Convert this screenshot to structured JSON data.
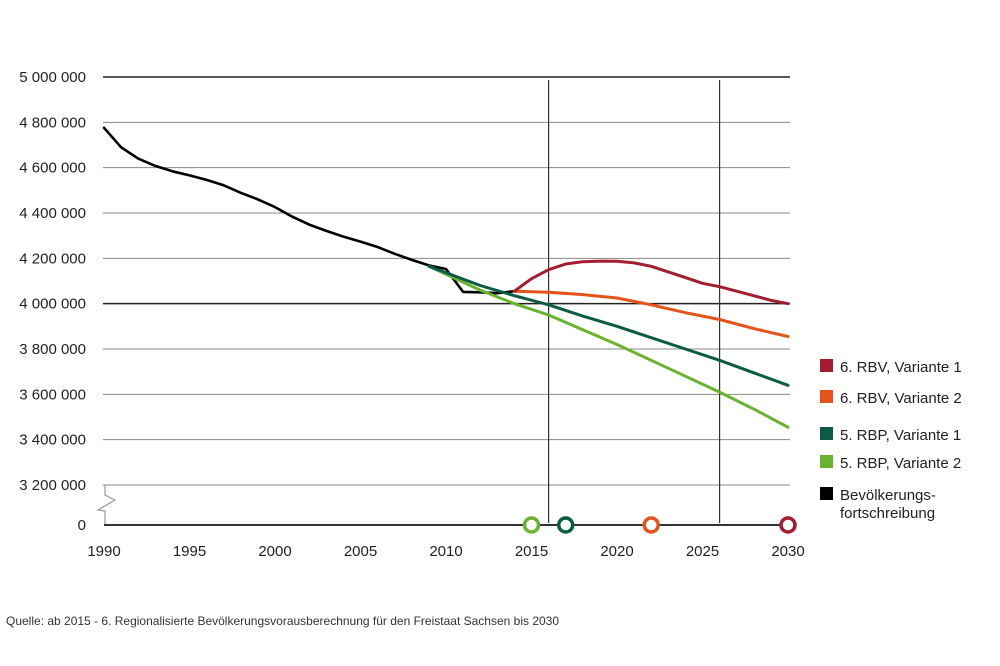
{
  "chart_data": {
    "type": "line",
    "title": "",
    "xlabel": "",
    "ylabel": "",
    "xlim": [
      1990,
      2030
    ],
    "ylim": [
      3200000,
      5000000
    ],
    "y_axis_break": {
      "from": 0,
      "to": 3200000
    },
    "x_ticks": [
      "1990",
      "1995",
      "2000",
      "2005",
      "2010",
      "2015",
      "2020",
      "2025",
      "2030"
    ],
    "y_ticks": [
      {
        "value": 5000000,
        "label": "5 000 000"
      },
      {
        "value": 4800000,
        "label": "4 800 000"
      },
      {
        "value": 4600000,
        "label": "4 600 000"
      },
      {
        "value": 4400000,
        "label": "4 400 000"
      },
      {
        "value": 4200000,
        "label": "4 200 000"
      },
      {
        "value": 4000000,
        "label": "4 000 000"
      },
      {
        "value": 3800000,
        "label": "3 800 000"
      },
      {
        "value": 3600000,
        "label": "3 600 000"
      },
      {
        "value": 3400000,
        "label": "3 400 000"
      },
      {
        "value": 3200000,
        "label": "3 200 000"
      },
      {
        "value": 0,
        "label": "0"
      }
    ],
    "grid": true,
    "reference_lines_x": [
      2016,
      2026
    ],
    "legend_position": "right",
    "series": [
      {
        "name": "6. RBV, Variante 1",
        "color": "#a51c30",
        "x": [
          2014,
          2015,
          2016,
          2017,
          2018,
          2019,
          2020,
          2021,
          2022,
          2023,
          2024,
          2025,
          2026,
          2027,
          2028,
          2029,
          2030
        ],
        "y": [
          4055000,
          4110000,
          4150000,
          4175000,
          4185000,
          4188000,
          4187000,
          4180000,
          4165000,
          4140000,
          4115000,
          4090000,
          4075000,
          4055000,
          4035000,
          4015000,
          4000000
        ],
        "marker_year": 2030
      },
      {
        "name": "6. RBV, Variante 2",
        "color": "#e5531a",
        "x": [
          2014,
          2016,
          2018,
          2020,
          2022,
          2024,
          2026,
          2028,
          2030
        ],
        "y": [
          4055000,
          4050000,
          4040000,
          4025000,
          3995000,
          3960000,
          3930000,
          3890000,
          3855000
        ],
        "marker_year": 2022
      },
      {
        "name": "5. RBP, Variante 1",
        "color": "#0b5c45",
        "x": [
          2009,
          2012,
          2014,
          2016,
          2018,
          2020,
          2022,
          2024,
          2026,
          2028,
          2030
        ],
        "y": [
          4165000,
          4080000,
          4035000,
          3995000,
          3945000,
          3900000,
          3850000,
          3800000,
          3750000,
          3695000,
          3640000
        ],
        "marker_year": 2017
      },
      {
        "name": "5. RBP, Variante 2",
        "color": "#6ab42d",
        "x": [
          2009,
          2012,
          2014,
          2016,
          2018,
          2020,
          2022,
          2024,
          2026,
          2028,
          2030
        ],
        "y": [
          4165000,
          4060000,
          4000000,
          3950000,
          3885000,
          3820000,
          3750000,
          3680000,
          3610000,
          3535000,
          3455000
        ],
        "marker_year": 2015
      },
      {
        "name": "Bevölkerungs-\nfortschreibung",
        "name_lines": [
          "Bevölkerungs-",
          "fortschreibung"
        ],
        "color": "#000000",
        "x": [
          1990,
          1991,
          1992,
          1993,
          1994,
          1995,
          1996,
          1997,
          1998,
          1999,
          2000,
          2001,
          2002,
          2003,
          2004,
          2005,
          2006,
          2007,
          2008,
          2009,
          2010,
          2011,
          2012,
          2013,
          2014
        ],
        "y": [
          4776000,
          4690000,
          4640000,
          4608000,
          4584000,
          4566000,
          4546000,
          4522000,
          4489000,
          4460000,
          4426000,
          4384000,
          4349000,
          4321000,
          4296000,
          4274000,
          4250000,
          4220000,
          4193000,
          4169000,
          4153000,
          4052000,
          4050000,
          4046000,
          4055000
        ]
      }
    ]
  },
  "source": "Quelle: ab 2015 - 6. Regionalisierte Bevölkerungsvorausberechnung für den Freistaat Sachsen bis 2030"
}
